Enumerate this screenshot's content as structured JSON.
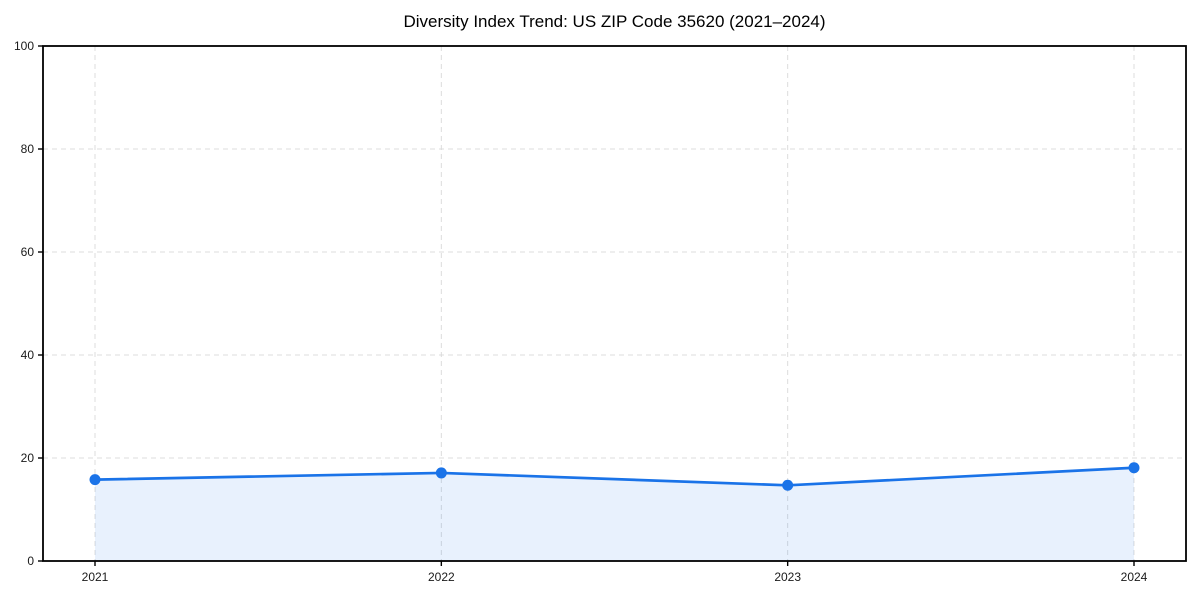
{
  "chart_data": {
    "type": "line",
    "title": "Diversity Index Trend: US ZIP Code 35620 (2021–2024)",
    "categories": [
      "2021",
      "2022",
      "2023",
      "2024"
    ],
    "x": [
      2021,
      2022,
      2023,
      2024
    ],
    "series": [
      {
        "name": "Diversity Index",
        "values": [
          15.8,
          17.1,
          14.7,
          18.1
        ]
      }
    ],
    "xlabel": "",
    "ylabel": "",
    "ylim": [
      0,
      100
    ],
    "yticks": [
      0,
      20,
      40,
      60,
      80,
      100
    ],
    "grid": true,
    "grid_style": "dashed",
    "grid_vertical": true,
    "legend_position": "none",
    "marker": "circle",
    "area_fill": true,
    "frame": "box",
    "colors": {
      "line": "#1a73e8",
      "marker": "#1a73e8",
      "area_fill": "rgba(26,115,232,0.10)",
      "gridline": "#dcdcdc",
      "axis": "#000000",
      "tick_label": "#1a1a1a",
      "title": "#000000",
      "background": "#ffffff"
    }
  }
}
